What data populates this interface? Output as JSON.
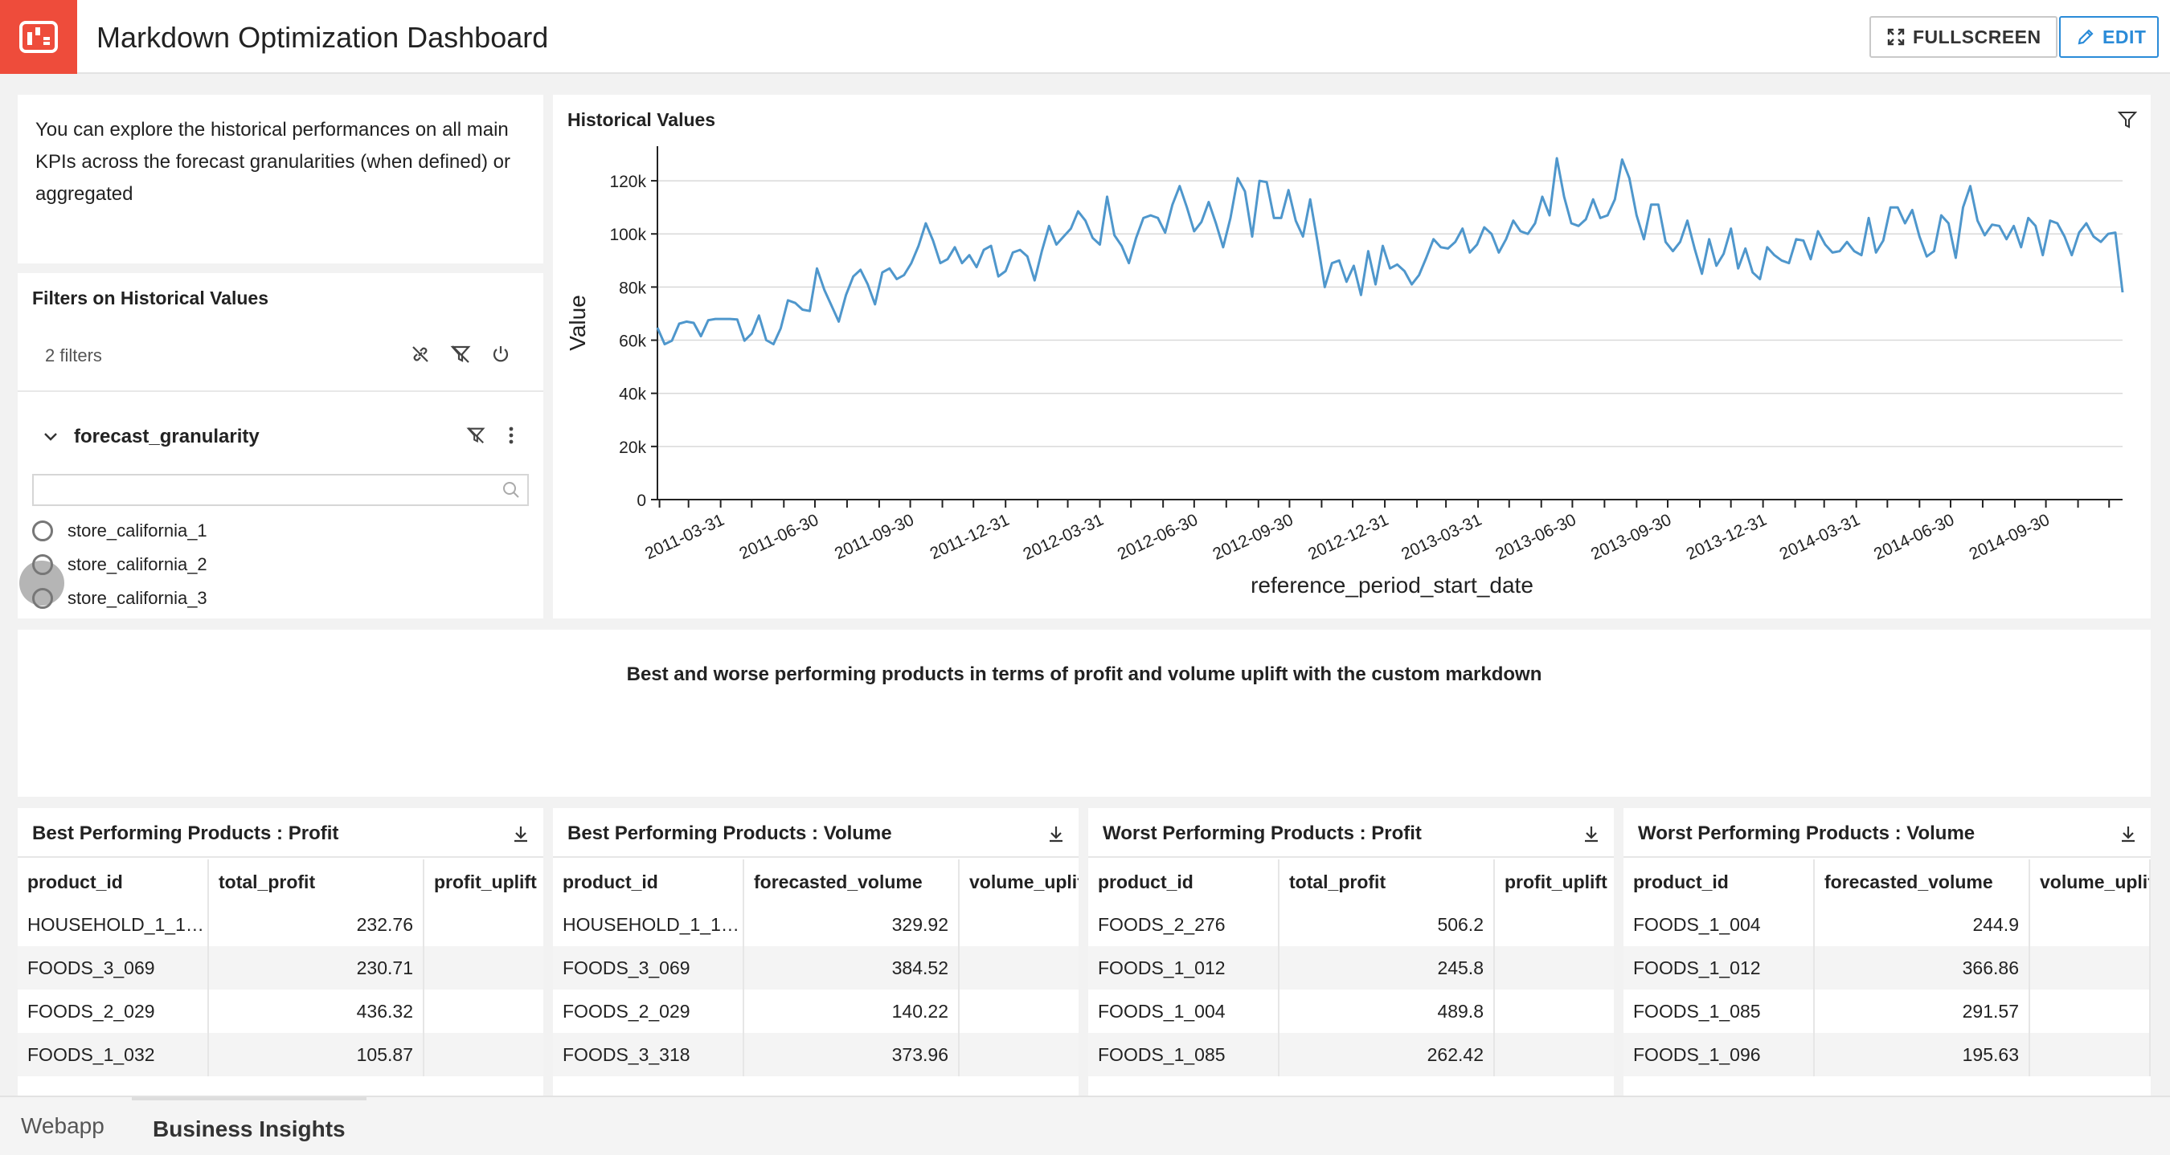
{
  "header": {
    "title": "Markdown Optimization Dashboard",
    "fullscreen_label": "FULLSCREEN",
    "edit_label": "EDIT",
    "logo_icon": "dashboard-icon",
    "brand_color": "#ee4c3b",
    "accent_color": "#2a8bd8"
  },
  "intro": {
    "text": "You can explore the historical performances on all main KPIs across the forecast granularities (when defined) or aggregated"
  },
  "filters": {
    "title": "Filters on Historical Values",
    "count_text": "2 filters",
    "facet": {
      "name": "forecast_granularity",
      "search_placeholder": "",
      "options": [
        "store_california_1",
        "store_california_2",
        "store_california_3"
      ]
    }
  },
  "chart_data": {
    "type": "line",
    "title": "Historical Values",
    "xlabel": "reference_period_start_date",
    "ylabel": "Value",
    "ylim": [
      0,
      130000
    ],
    "y_ticks": [
      0,
      20000,
      40000,
      60000,
      80000,
      100000,
      120000
    ],
    "y_tick_labels": [
      "0",
      "20k",
      "40k",
      "60k",
      "80k",
      "100k",
      "120k"
    ],
    "x_tick_labels": [
      "2011-03-31",
      "2011-06-30",
      "2011-09-30",
      "2011-12-31",
      "2012-03-31",
      "2012-06-30",
      "2012-09-30",
      "2012-12-31",
      "2013-03-31",
      "2013-06-30",
      "2013-09-30",
      "2013-12-31",
      "2014-03-31",
      "2014-06-30",
      "2014-09-30"
    ],
    "x_start": "2011-01-29",
    "x_end": "2014-12-13",
    "grid": true,
    "line_color": "#4f97cc",
    "series": [
      {
        "name": "",
        "values": [
          64700,
          58500,
          59800,
          66200,
          67000,
          66500,
          61500,
          67500,
          68000,
          68000,
          68000,
          67800,
          59800,
          62500,
          69300,
          60000,
          58500,
          64500,
          75000,
          74000,
          71500,
          71000,
          87000,
          79000,
          73000,
          67000,
          77000,
          84000,
          86500,
          81000,
          73500,
          85500,
          87000,
          83000,
          84500,
          89000,
          95500,
          104000,
          97500,
          89000,
          90500,
          95000,
          89000,
          92000,
          87500,
          94000,
          95500,
          84000,
          86000,
          93000,
          94000,
          91500,
          82500,
          93500,
          103000,
          96000,
          99000,
          102000,
          108500,
          105000,
          98500,
          96000,
          114000,
          99500,
          95500,
          89000,
          98500,
          106000,
          107000,
          106000,
          100500,
          111000,
          118000,
          110000,
          101000,
          104500,
          112000,
          104000,
          95000,
          106000,
          121000,
          116000,
          99000,
          120000,
          119500,
          106000,
          106000,
          116500,
          105000,
          99000,
          113000,
          97000,
          80000,
          89000,
          90000,
          82000,
          88000,
          77000,
          93500,
          81000,
          95500,
          87000,
          88500,
          86000,
          81000,
          84500,
          91000,
          98000,
          95000,
          94500,
          97000,
          102000,
          93000,
          96000,
          102500,
          100000,
          93000,
          98000,
          105000,
          101000,
          100000,
          104000,
          114000,
          107000,
          128500,
          114000,
          104000,
          103000,
          105500,
          113000,
          106000,
          107000,
          113000,
          128000,
          121000,
          107000,
          98000,
          111000,
          111000,
          97000,
          93500,
          97000,
          105000,
          94500,
          85000,
          98000,
          88000,
          92500,
          102000,
          87000,
          94500,
          85500,
          83000,
          95000,
          92000,
          90000,
          89000,
          98000,
          97500,
          90500,
          101000,
          96000,
          93000,
          93500,
          97000,
          93500,
          92000,
          106000,
          93000,
          97500,
          110000,
          110000,
          104000,
          109000,
          99000,
          91500,
          93500,
          107000,
          104000,
          91000,
          110000,
          118000,
          105000,
          99500,
          103500,
          103000,
          98000,
          103000,
          95000,
          106000,
          103000,
          92000,
          105000,
          104000,
          99000,
          92000,
          100500,
          104000,
          99000,
          97000,
          100000,
          100500,
          78000
        ]
      }
    ]
  },
  "insights": {
    "text": "Best and worse performing products in terms of profit and volume uplift with the custom markdown"
  },
  "tables": [
    {
      "title": "Best Performing Products : Profit",
      "columns": [
        "product_id",
        "total_profit",
        "profit_uplift"
      ],
      "rows": [
        [
          "HOUSEHOLD_1_1…",
          "232.76",
          ""
        ],
        [
          "FOODS_3_069",
          "230.71",
          ""
        ],
        [
          "FOODS_2_029",
          "436.32",
          ""
        ],
        [
          "FOODS_1_032",
          "105.87",
          ""
        ]
      ]
    },
    {
      "title": "Best Performing Products : Volume",
      "columns": [
        "product_id",
        "forecasted_volume",
        "volume_uplift"
      ],
      "rows": [
        [
          "HOUSEHOLD_1_1…",
          "329.92",
          ""
        ],
        [
          "FOODS_3_069",
          "384.52",
          ""
        ],
        [
          "FOODS_2_029",
          "140.22",
          ""
        ],
        [
          "FOODS_3_318",
          "373.96",
          ""
        ]
      ]
    },
    {
      "title": "Worst Performing Products : Profit",
      "columns": [
        "product_id",
        "total_profit",
        "profit_uplift"
      ],
      "rows": [
        [
          "FOODS_2_276",
          "506.2",
          ""
        ],
        [
          "FOODS_1_012",
          "245.8",
          ""
        ],
        [
          "FOODS_1_004",
          "489.8",
          ""
        ],
        [
          "FOODS_1_085",
          "262.42",
          ""
        ]
      ]
    },
    {
      "title": "Worst Performing Products : Volume",
      "columns": [
        "product_id",
        "forecasted_volume",
        "volume_uplift"
      ],
      "rows": [
        [
          "FOODS_1_004",
          "244.9",
          ""
        ],
        [
          "FOODS_1_012",
          "366.86",
          ""
        ],
        [
          "FOODS_1_085",
          "291.57",
          ""
        ],
        [
          "FOODS_1_096",
          "195.63",
          ""
        ]
      ]
    }
  ],
  "bottom_tabs": {
    "webapp": "Webapp",
    "insights": "Business Insights"
  }
}
